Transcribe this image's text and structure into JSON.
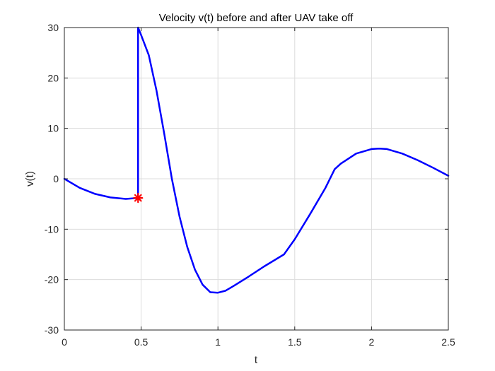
{
  "chart_data": {
    "type": "line",
    "title": "Velocity v(t) before and after UAV take off",
    "xlabel": "t",
    "ylabel": "v(t)",
    "xlim": [
      0,
      2.5
    ],
    "ylim": [
      -30,
      30
    ],
    "xticks": [
      0,
      0.5,
      1,
      1.5,
      2,
      2.5
    ],
    "xtick_labels": [
      "0",
      "0.5",
      "1",
      "1.5",
      "2",
      "2.5"
    ],
    "yticks": [
      -30,
      -20,
      -10,
      0,
      10,
      20,
      30
    ],
    "ytick_labels": [
      "-30",
      "-20",
      "-10",
      "0",
      "10",
      "20",
      "30"
    ],
    "grid": true,
    "series": [
      {
        "color": "#0000ff",
        "x": [
          0,
          0.1,
          0.2,
          0.3,
          0.4,
          0.48,
          0.48,
          0.5,
          0.55,
          0.6,
          0.65,
          0.7,
          0.75,
          0.8,
          0.85,
          0.9,
          0.95,
          1.0,
          1.05,
          1.1,
          1.2,
          1.3,
          1.43,
          1.5,
          1.6,
          1.7,
          1.76,
          1.8,
          1.9,
          2.0,
          2.05,
          2.1,
          2.2,
          2.3,
          2.4,
          2.5
        ],
        "y": [
          0,
          -1.8,
          -3.0,
          -3.7,
          -4.0,
          -3.8,
          30,
          28.5,
          24.5,
          17.5,
          9.0,
          0.0,
          -7.5,
          -13.5,
          -18.0,
          -21.0,
          -22.5,
          -22.6,
          -22.2,
          -21.3,
          -19.4,
          -17.4,
          -15.0,
          -12.0,
          -7.0,
          -1.8,
          1.9,
          3.0,
          5.0,
          5.9,
          6.0,
          5.9,
          5.0,
          3.7,
          2.2,
          0.6
        ]
      }
    ],
    "markers": [
      {
        "x": 0.48,
        "y": -3.8,
        "color": "#ff0000",
        "shape": "star"
      }
    ]
  }
}
